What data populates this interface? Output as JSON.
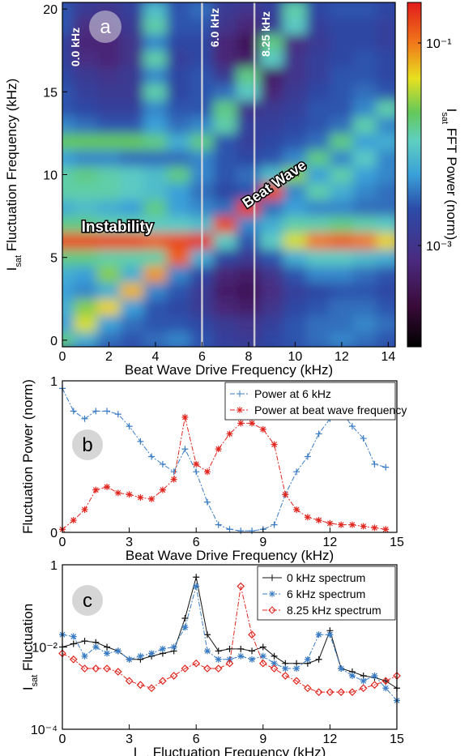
{
  "chart_data": [
    {
      "type": "heatmap",
      "panel_label": "a",
      "xlabel": "Beat Wave Drive Frequency (kHz)",
      "ylabel": [
        "I",
        "sat",
        " Fluctuation Frequency (kHz)"
      ],
      "colorbar_label": [
        "I",
        "sat",
        " FFT Power (norm)"
      ],
      "xlim": [
        0,
        14.3
      ],
      "ylim": [
        -0.4,
        20.4
      ],
      "xticks": [
        0,
        2,
        4,
        6,
        8,
        10,
        12,
        14
      ],
      "yticks": [
        0,
        5,
        10,
        15,
        20
      ],
      "clim": [
        -4,
        -0.6
      ],
      "colorbar_ticks": [
        {
          "value": -1,
          "label": "10⁻¹"
        },
        {
          "value": -3,
          "label": "10⁻³"
        }
      ],
      "vlines": [
        6,
        8.25
      ],
      "annotations": [
        "0.0 kHz",
        "6.0 kHz",
        "8.25 kHz",
        "Beat Wave",
        "Instability"
      ],
      "x": [
        0,
        1,
        2,
        3,
        4,
        5,
        6,
        7,
        8,
        9,
        10,
        11,
        12,
        13,
        14
      ],
      "y": [
        0,
        1,
        2,
        3,
        4,
        5,
        6,
        7,
        8,
        9,
        10,
        11,
        12,
        13,
        14,
        15,
        16,
        17,
        18,
        19,
        20
      ],
      "z": [
        [
          -1.8,
          -2.2,
          -2.5,
          -2.6,
          -2.5,
          -2.4,
          -2.6,
          -2.8,
          -2.9,
          -2.7,
          -2.6,
          -2.5,
          -2.4,
          -2.5,
          -2.6
        ],
        [
          -2.3,
          -1.4,
          -2.3,
          -2.5,
          -2.6,
          -2.6,
          -2.7,
          -2.9,
          -3.0,
          -2.8,
          -2.6,
          -2.5,
          -2.5,
          -2.4,
          -2.5
        ],
        [
          -2.2,
          -1.6,
          -1.3,
          -2.3,
          -2.6,
          -2.7,
          -2.9,
          -3.2,
          -3.3,
          -3.0,
          -2.7,
          -2.6,
          -2.5,
          -2.5,
          -2.6
        ],
        [
          -2.3,
          -2.4,
          -2.2,
          -1.2,
          -2.4,
          -2.6,
          -2.9,
          -3.3,
          -3.4,
          -3.1,
          -2.8,
          -2.7,
          -2.6,
          -2.6,
          -2.7
        ],
        [
          -2.2,
          -2.3,
          -1.6,
          -2.2,
          -1.1,
          -2.4,
          -2.7,
          -3.2,
          -3.3,
          -3.0,
          -2.6,
          -2.4,
          -2.4,
          -2.5,
          -2.6
        ],
        [
          -1.8,
          -1.8,
          -1.9,
          -1.9,
          -1.9,
          -0.9,
          -2.2,
          -2.7,
          -2.9,
          -2.6,
          -2.2,
          -2.0,
          -2.0,
          -2.1,
          -2.2
        ],
        [
          -0.8,
          -0.8,
          -0.8,
          -0.8,
          -0.9,
          -0.8,
          -0.7,
          -2.0,
          -2.6,
          -2.0,
          -1.4,
          -1.0,
          -0.9,
          -1.0,
          -1.3
        ],
        [
          -1.8,
          -1.8,
          -1.9,
          -1.9,
          -2.0,
          -2.0,
          -2.1,
          -0.8,
          -2.4,
          -2.2,
          -1.9,
          -1.9,
          -1.8,
          -1.9,
          -2.0
        ],
        [
          -2.2,
          -2.1,
          -2.2,
          -2.3,
          -1.8,
          -2.3,
          -2.4,
          -2.5,
          -0.75,
          -2.5,
          -2.3,
          -2.4,
          -2.4,
          -2.5,
          -2.5
        ],
        [
          -1.9,
          -1.9,
          -1.9,
          -2.0,
          -2.1,
          -2.3,
          -2.5,
          -2.7,
          -2.6,
          -0.8,
          -2.4,
          -1.9,
          -2.2,
          -2.4,
          -2.5
        ],
        [
          -1.9,
          -1.8,
          -1.9,
          -2.0,
          -2.1,
          -1.8,
          -2.4,
          -2.6,
          -2.5,
          -2.1,
          -1.6,
          -2.3,
          -1.9,
          -2.3,
          -2.4
        ],
        [
          -2.3,
          -2.4,
          -2.4,
          -2.5,
          -2.5,
          -2.5,
          -2.4,
          -2.6,
          -2.7,
          -2.6,
          -2.4,
          -1.8,
          -2.4,
          -2.0,
          -2.4
        ],
        [
          -1.7,
          -1.7,
          -1.7,
          -1.7,
          -1.8,
          -2.2,
          -1.8,
          -2.6,
          -2.8,
          -2.7,
          -2.6,
          -2.5,
          -1.8,
          -2.3,
          -2.2
        ],
        [
          -2.4,
          -2.5,
          -2.6,
          -2.6,
          -2.3,
          -2.5,
          -2.4,
          -1.9,
          -2.8,
          -2.8,
          -2.7,
          -2.6,
          -2.5,
          -1.9,
          -2.4
        ],
        [
          -2.6,
          -2.7,
          -2.8,
          -2.8,
          -2.4,
          -2.6,
          -2.6,
          -1.8,
          -3.0,
          -2.9,
          -2.8,
          -2.6,
          -2.6,
          -2.4,
          -1.9
        ],
        [
          -2.6,
          -2.8,
          -2.9,
          -2.9,
          -1.9,
          -2.7,
          -2.6,
          -2.5,
          -2.0,
          -3.2,
          -2.9,
          -2.7,
          -2.6,
          -2.5,
          -2.6
        ],
        [
          -2.7,
          -2.9,
          -3.0,
          -2.9,
          -2.4,
          -2.7,
          -2.6,
          -2.9,
          -1.8,
          -3.3,
          -3.0,
          -2.8,
          -2.6,
          -2.6,
          -2.7
        ],
        [
          -2.8,
          -3.1,
          -3.2,
          -3.0,
          -1.9,
          -2.8,
          -2.7,
          -3.2,
          -3.3,
          -2.0,
          -3.0,
          -2.8,
          -2.7,
          -2.6,
          -2.7
        ],
        [
          -2.8,
          -3.2,
          -3.2,
          -3.0,
          -2.4,
          -2.7,
          -2.7,
          -3.2,
          -3.4,
          -1.8,
          -3.1,
          -2.9,
          -2.7,
          -2.7,
          -2.8
        ],
        [
          -2.6,
          -3.1,
          -3.1,
          -2.9,
          -1.9,
          -2.6,
          -2.6,
          -3.0,
          -3.2,
          -2.9,
          -2.0,
          -2.8,
          -2.7,
          -2.7,
          -2.8
        ],
        [
          -2.6,
          -2.9,
          -3.0,
          -2.8,
          -2.1,
          -2.6,
          -2.5,
          -2.9,
          -3.0,
          -2.8,
          -1.9,
          -2.7,
          -2.6,
          -2.6,
          -2.7
        ]
      ]
    },
    {
      "type": "line",
      "panel_label": "b",
      "xlabel": "Beat Wave Drive Frequency (kHz)",
      "ylabel": "Fluctuation Power (norm)",
      "xlim": [
        0,
        15
      ],
      "ylim": [
        0,
        1
      ],
      "xticks": [
        0,
        3,
        6,
        9,
        12,
        15
      ],
      "yticks": [
        0,
        1
      ],
      "legend": "upper right",
      "x": [
        0,
        0.5,
        1,
        1.5,
        2,
        2.5,
        3,
        3.5,
        4,
        4.5,
        5,
        5.5,
        6,
        6.5,
        7,
        7.5,
        8,
        8.5,
        9,
        9.5,
        10,
        10.5,
        11,
        11.5,
        12,
        12.5,
        13,
        13.5,
        14,
        14.5
      ],
      "series": [
        {
          "name": "Power at 6 kHz",
          "color": "#3a7cc4",
          "marker": "plus",
          "values": [
            0.95,
            0.8,
            0.75,
            0.8,
            0.8,
            0.78,
            0.7,
            0.6,
            0.5,
            0.45,
            0.4,
            0.55,
            0.4,
            0.2,
            0.05,
            0.02,
            0.01,
            0.01,
            0.02,
            0.05,
            0.25,
            0.4,
            0.5,
            0.65,
            0.75,
            0.8,
            0.7,
            0.62,
            0.45,
            0.43
          ]
        },
        {
          "name": "Power at beat wave frequency",
          "color": "#e0261f",
          "marker": "star",
          "values": [
            0.02,
            0.08,
            0.15,
            0.28,
            0.3,
            0.26,
            0.25,
            0.23,
            0.22,
            0.28,
            0.35,
            0.76,
            0.45,
            0.4,
            0.55,
            0.65,
            0.72,
            0.72,
            0.68,
            0.58,
            0.25,
            0.15,
            0.1,
            0.08,
            0.06,
            0.05,
            0.05,
            0.04,
            0.03,
            0.02
          ]
        }
      ]
    },
    {
      "type": "line",
      "panel_label": "c",
      "log_y": true,
      "xlabel": [
        "I",
        "sat",
        " Fluctuation Frequency (kHz)"
      ],
      "ylabel": [
        "I",
        "sat",
        " Fluctuation"
      ],
      "xlim": [
        0,
        15
      ],
      "ylim": [
        0.0001,
        1
      ],
      "xticks": [
        0,
        3,
        6,
        9,
        12,
        15
      ],
      "yticks": [
        1,
        {
          "value": 0.01,
          "label": "10⁻²"
        },
        {
          "value": 0.0001,
          "label": "10⁻⁴"
        }
      ],
      "legend": "upper right",
      "x": [
        0,
        0.5,
        1,
        1.5,
        2,
        2.5,
        3,
        3.5,
        4,
        4.5,
        5,
        5.5,
        6,
        6.5,
        7,
        7.5,
        8,
        8.5,
        9,
        9.5,
        10,
        10.5,
        11,
        11.5,
        12,
        12.5,
        13,
        13.5,
        14,
        14.5,
        15
      ],
      "series": [
        {
          "name": "0 kHz spectrum",
          "color": "#111111",
          "marker": "plus",
          "values": [
            0.01,
            0.012,
            0.014,
            0.013,
            0.01,
            0.008,
            0.005,
            0.005,
            0.006,
            0.007,
            0.008,
            0.05,
            0.5,
            0.02,
            0.008,
            0.009,
            0.009,
            0.008,
            0.01,
            0.006,
            0.004,
            0.004,
            0.004,
            0.005,
            0.025,
            0.003,
            0.0025,
            0.002,
            0.0018,
            0.0015,
            0.001
          ]
        },
        {
          "name": "6 kHz spectrum",
          "color": "#3a7cc4",
          "marker": "star",
          "values": [
            0.02,
            0.018,
            0.006,
            0.01,
            0.007,
            0.008,
            0.005,
            0.006,
            0.007,
            0.009,
            0.01,
            0.03,
            0.3,
            0.008,
            0.005,
            0.005,
            0.006,
            0.005,
            0.006,
            0.004,
            0.003,
            0.003,
            0.005,
            0.02,
            0.02,
            0.003,
            0.002,
            0.0015,
            0.002,
            0.001,
            0.0005
          ]
        },
        {
          "name": "8.25 kHz spectrum",
          "color": "#e0261f",
          "marker": "diamond",
          "values": [
            0.007,
            0.005,
            0.003,
            0.003,
            0.003,
            0.0025,
            0.0015,
            0.0012,
            0.001,
            0.0015,
            0.002,
            0.003,
            0.004,
            0.003,
            0.003,
            0.004,
            0.3,
            0.02,
            0.004,
            0.003,
            0.002,
            0.0015,
            0.001,
            0.0008,
            0.0008,
            0.0008,
            0.0008,
            0.001,
            0.0012,
            0.0015,
            0.002
          ]
        }
      ]
    }
  ]
}
